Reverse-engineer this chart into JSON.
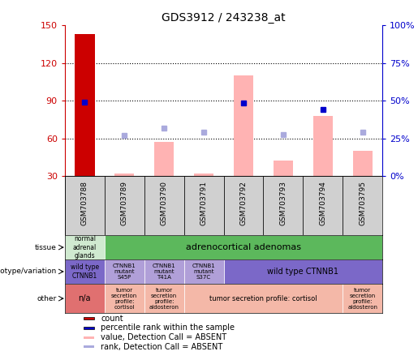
{
  "title": "GDS3912 / 243238_at",
  "samples": [
    "GSM703788",
    "GSM703789",
    "GSM703790",
    "GSM703791",
    "GSM703792",
    "GSM703793",
    "GSM703794",
    "GSM703795"
  ],
  "bar_heights_pink": [
    0,
    32,
    57,
    32,
    110,
    42,
    78,
    50
  ],
  "bar_heights_red": [
    143,
    0,
    0,
    0,
    0,
    0,
    0,
    0
  ],
  "blue_squares_y": [
    89,
    62,
    68,
    65,
    88,
    63,
    83,
    65
  ],
  "blue_squares_absent": [
    false,
    true,
    true,
    true,
    false,
    true,
    false,
    true
  ],
  "ylim_left": [
    30,
    150
  ],
  "ylim_right": [
    0,
    100
  ],
  "yticks_left": [
    30,
    60,
    90,
    120,
    150
  ],
  "yticks_right": [
    0,
    25,
    50,
    75,
    100
  ],
  "ytick_labels_right": [
    "0%",
    "25%",
    "50%",
    "75%",
    "100%"
  ],
  "tissue_row": {
    "cells": [
      {
        "text": "normal\nadrenal\nglands",
        "span": 1,
        "color": "#d0ead0",
        "fontsize": 5.5
      },
      {
        "text": "adrenocortical adenomas",
        "span": 7,
        "color": "#5cb85c",
        "fontsize": 8
      }
    ]
  },
  "genotype_row": {
    "cells": [
      {
        "text": "wild type\nCTNNB1",
        "span": 1,
        "color": "#7b68c8",
        "fontsize": 5.5
      },
      {
        "text": "CTNNB1\nmutant\nS45P",
        "span": 1,
        "color": "#b09fd8",
        "fontsize": 5
      },
      {
        "text": "CTNNB1\nmutant\nT41A",
        "span": 1,
        "color": "#b09fd8",
        "fontsize": 5
      },
      {
        "text": "CTNNB1\nmutant\nS37C",
        "span": 1,
        "color": "#b09fd8",
        "fontsize": 5
      },
      {
        "text": "wild type CTNNB1",
        "span": 4,
        "color": "#7b68c8",
        "fontsize": 7
      }
    ]
  },
  "other_row": {
    "cells": [
      {
        "text": "n/a",
        "span": 1,
        "color": "#e07070",
        "fontsize": 7
      },
      {
        "text": "tumor\nsecretion\nprofile:\ncortisol",
        "span": 1,
        "color": "#f4b8a8",
        "fontsize": 5
      },
      {
        "text": "tumor\nsecretion\nprofile:\naldosteron",
        "span": 1,
        "color": "#f4b8a8",
        "fontsize": 5
      },
      {
        "text": "tumor secretion profile: cortisol",
        "span": 4,
        "color": "#f4b8a8",
        "fontsize": 6
      },
      {
        "text": "tumor\nsecretion\nprofile:\naldosteron",
        "span": 1,
        "color": "#f4b8a8",
        "fontsize": 5
      }
    ]
  },
  "row_labels": [
    "tissue",
    "genotype/variation",
    "other"
  ],
  "legend_items": [
    {
      "color": "#cc0000",
      "label": "count",
      "marker": "s"
    },
    {
      "color": "#0000cc",
      "label": "percentile rank within the sample",
      "marker": "s"
    },
    {
      "color": "#ffb3b3",
      "label": "value, Detection Call = ABSENT",
      "marker": "s"
    },
    {
      "color": "#aaaadd",
      "label": "rank, Detection Call = ABSENT",
      "marker": "s"
    }
  ],
  "left_axis_color": "#cc0000",
  "right_axis_color": "#0000cc",
  "bar_width": 0.5,
  "pink_bar_color": "#ffb3b3",
  "red_bar_color": "#cc0000",
  "blue_dot_color": "#0000cc",
  "blue_dot_absent_color": "#aaaadd",
  "gray_box_color": "#d0d0d0"
}
